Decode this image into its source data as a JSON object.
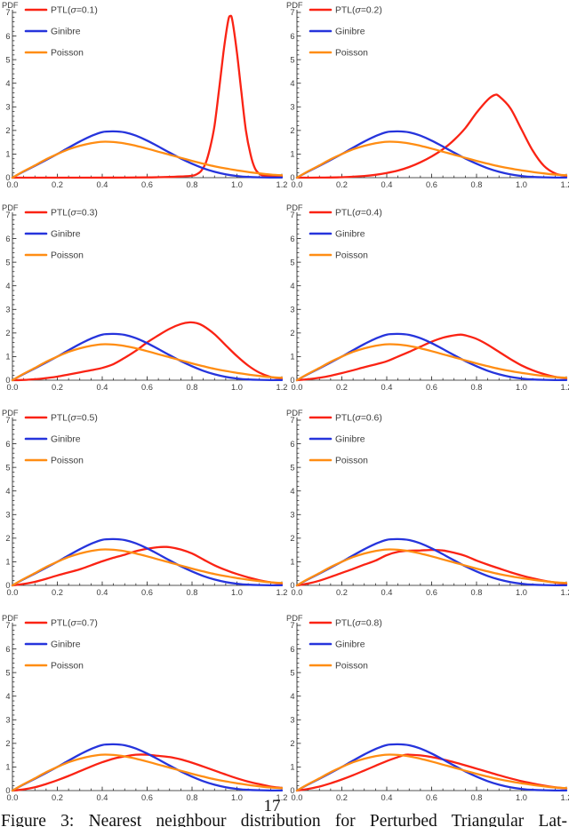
{
  "page": {
    "number": "17",
    "caption": "Figure 3:  Nearest neighbour distribution for Perturbed Triangular Lat-"
  },
  "colors": {
    "ptl": "#fa2314",
    "ginibre": "#2634dc",
    "poisson": "#ff8d13",
    "axis": "#1a1a1a",
    "tick_label": "#3d3d3d"
  },
  "chart_data": {
    "type": "line",
    "layout": "4 rows x 2 columns, 8 subplots",
    "ylabel": "PDF",
    "xlim": [
      0,
      1.2
    ],
    "ylim": [
      0,
      7
    ],
    "xtick_labels": [
      "0.0",
      "0.2",
      "0.4",
      "0.6",
      "0.8",
      "1.0",
      "1.2"
    ],
    "ytick_labels": [
      "0",
      "1",
      "2",
      "3",
      "4",
      "5",
      "6",
      "7"
    ],
    "x_minor_step": 0.05,
    "y_minor_step": 0.2,
    "grid": "off",
    "legend_position": "top-left",
    "common_series": [
      {
        "name": "Ginibre",
        "color": "#2634dc",
        "points": [
          [
            0,
            0
          ],
          [
            0.05,
            0.26
          ],
          [
            0.1,
            0.5
          ],
          [
            0.15,
            0.75
          ],
          [
            0.2,
            1.0
          ],
          [
            0.25,
            1.27
          ],
          [
            0.3,
            1.53
          ],
          [
            0.35,
            1.76
          ],
          [
            0.4,
            1.93
          ],
          [
            0.45,
            1.96
          ],
          [
            0.5,
            1.92
          ],
          [
            0.55,
            1.78
          ],
          [
            0.6,
            1.57
          ],
          [
            0.65,
            1.32
          ],
          [
            0.7,
            1.06
          ],
          [
            0.75,
            0.81
          ],
          [
            0.8,
            0.59
          ],
          [
            0.85,
            0.4
          ],
          [
            0.9,
            0.25
          ],
          [
            0.95,
            0.14
          ],
          [
            1.0,
            0.07
          ],
          [
            1.05,
            0.03
          ],
          [
            1.1,
            0.015
          ],
          [
            1.15,
            0.005
          ],
          [
            1.2,
            0.002
          ]
        ]
      },
      {
        "name": "Poisson",
        "color": "#ff8d13",
        "points": [
          [
            0,
            0
          ],
          [
            0.05,
            0.27
          ],
          [
            0.1,
            0.52
          ],
          [
            0.15,
            0.78
          ],
          [
            0.2,
            1.0
          ],
          [
            0.25,
            1.2
          ],
          [
            0.3,
            1.35
          ],
          [
            0.35,
            1.46
          ],
          [
            0.4,
            1.52
          ],
          [
            0.45,
            1.51
          ],
          [
            0.5,
            1.45
          ],
          [
            0.55,
            1.35
          ],
          [
            0.6,
            1.23
          ],
          [
            0.65,
            1.1
          ],
          [
            0.7,
            0.97
          ],
          [
            0.75,
            0.84
          ],
          [
            0.8,
            0.71
          ],
          [
            0.85,
            0.59
          ],
          [
            0.9,
            0.48
          ],
          [
            0.95,
            0.39
          ],
          [
            1.0,
            0.31
          ],
          [
            1.05,
            0.24
          ],
          [
            1.1,
            0.18
          ],
          [
            1.15,
            0.13
          ],
          [
            1.2,
            0.1
          ]
        ]
      }
    ],
    "subplots": [
      {
        "sigma": "0.1",
        "ptl_label": "PTL(σ=0.1)",
        "ptl_peak_x": 0.97,
        "ptl_peak_y": 6.85,
        "ptl_points": [
          [
            0,
            0
          ],
          [
            0.3,
            0
          ],
          [
            0.5,
            0.005
          ],
          [
            0.6,
            0.01
          ],
          [
            0.65,
            0.02
          ],
          [
            0.7,
            0.03
          ],
          [
            0.75,
            0.05
          ],
          [
            0.8,
            0.08
          ],
          [
            0.82,
            0.14
          ],
          [
            0.84,
            0.28
          ],
          [
            0.86,
            0.6
          ],
          [
            0.88,
            1.25
          ],
          [
            0.9,
            2.2
          ],
          [
            0.92,
            3.7
          ],
          [
            0.94,
            5.3
          ],
          [
            0.96,
            6.6
          ],
          [
            0.97,
            6.85
          ],
          [
            0.98,
            6.65
          ],
          [
            1.0,
            5.3
          ],
          [
            1.02,
            3.6
          ],
          [
            1.04,
            2.0
          ],
          [
            1.06,
            1.0
          ],
          [
            1.08,
            0.4
          ],
          [
            1.1,
            0.16
          ],
          [
            1.12,
            0.09
          ],
          [
            1.15,
            0.06
          ],
          [
            1.2,
            0.05
          ]
        ]
      },
      {
        "sigma": "0.2",
        "ptl_label": "PTL(σ=0.2)",
        "ptl_peak_x": 0.88,
        "ptl_peak_y": 3.5,
        "ptl_points": [
          [
            0,
            0
          ],
          [
            0.1,
            0.005
          ],
          [
            0.2,
            0.02
          ],
          [
            0.3,
            0.07
          ],
          [
            0.35,
            0.12
          ],
          [
            0.4,
            0.2
          ],
          [
            0.45,
            0.3
          ],
          [
            0.5,
            0.45
          ],
          [
            0.55,
            0.65
          ],
          [
            0.6,
            0.9
          ],
          [
            0.65,
            1.2
          ],
          [
            0.7,
            1.6
          ],
          [
            0.75,
            2.1
          ],
          [
            0.8,
            2.75
          ],
          [
            0.85,
            3.3
          ],
          [
            0.88,
            3.5
          ],
          [
            0.9,
            3.45
          ],
          [
            0.95,
            2.95
          ],
          [
            1.0,
            2.05
          ],
          [
            1.05,
            1.15
          ],
          [
            1.1,
            0.5
          ],
          [
            1.15,
            0.18
          ],
          [
            1.2,
            0.07
          ]
        ]
      },
      {
        "sigma": "0.3",
        "ptl_label": "PTL(σ=0.3)",
        "ptl_peak_x": 0.79,
        "ptl_peak_y": 2.45,
        "ptl_points": [
          [
            0,
            0
          ],
          [
            0.05,
            0.01
          ],
          [
            0.1,
            0.04
          ],
          [
            0.15,
            0.09
          ],
          [
            0.2,
            0.15
          ],
          [
            0.25,
            0.24
          ],
          [
            0.3,
            0.33
          ],
          [
            0.35,
            0.42
          ],
          [
            0.4,
            0.52
          ],
          [
            0.45,
            0.68
          ],
          [
            0.5,
            0.95
          ],
          [
            0.55,
            1.25
          ],
          [
            0.6,
            1.6
          ],
          [
            0.65,
            1.9
          ],
          [
            0.7,
            2.18
          ],
          [
            0.75,
            2.38
          ],
          [
            0.79,
            2.45
          ],
          [
            0.82,
            2.42
          ],
          [
            0.85,
            2.3
          ],
          [
            0.9,
            1.95
          ],
          [
            0.95,
            1.48
          ],
          [
            1.0,
            1.02
          ],
          [
            1.05,
            0.62
          ],
          [
            1.1,
            0.32
          ],
          [
            1.15,
            0.14
          ],
          [
            1.2,
            0.07
          ]
        ]
      },
      {
        "sigma": "0.4",
        "ptl_label": "PTL(σ=0.4)",
        "ptl_peak_x": 0.73,
        "ptl_peak_y": 1.93,
        "ptl_points": [
          [
            0,
            0
          ],
          [
            0.05,
            0.04
          ],
          [
            0.1,
            0.1
          ],
          [
            0.15,
            0.19
          ],
          [
            0.2,
            0.3
          ],
          [
            0.25,
            0.42
          ],
          [
            0.3,
            0.55
          ],
          [
            0.35,
            0.67
          ],
          [
            0.4,
            0.8
          ],
          [
            0.45,
            1.0
          ],
          [
            0.5,
            1.2
          ],
          [
            0.55,
            1.42
          ],
          [
            0.6,
            1.63
          ],
          [
            0.65,
            1.8
          ],
          [
            0.7,
            1.9
          ],
          [
            0.73,
            1.93
          ],
          [
            0.75,
            1.9
          ],
          [
            0.8,
            1.75
          ],
          [
            0.85,
            1.5
          ],
          [
            0.9,
            1.2
          ],
          [
            0.95,
            0.9
          ],
          [
            1.0,
            0.63
          ],
          [
            1.05,
            0.42
          ],
          [
            1.1,
            0.26
          ],
          [
            1.15,
            0.14
          ],
          [
            1.2,
            0.08
          ]
        ]
      },
      {
        "sigma": "0.5",
        "ptl_label": "PTL(σ=0.5)",
        "ptl_peak_x": 0.68,
        "ptl_peak_y": 1.63,
        "ptl_points": [
          [
            0,
            0
          ],
          [
            0.05,
            0.06
          ],
          [
            0.1,
            0.15
          ],
          [
            0.15,
            0.28
          ],
          [
            0.2,
            0.42
          ],
          [
            0.25,
            0.55
          ],
          [
            0.3,
            0.68
          ],
          [
            0.35,
            0.85
          ],
          [
            0.4,
            1.02
          ],
          [
            0.45,
            1.17
          ],
          [
            0.5,
            1.3
          ],
          [
            0.55,
            1.45
          ],
          [
            0.6,
            1.55
          ],
          [
            0.65,
            1.62
          ],
          [
            0.68,
            1.63
          ],
          [
            0.7,
            1.62
          ],
          [
            0.75,
            1.52
          ],
          [
            0.8,
            1.35
          ],
          [
            0.85,
            1.1
          ],
          [
            0.9,
            0.85
          ],
          [
            0.95,
            0.65
          ],
          [
            1.0,
            0.48
          ],
          [
            1.05,
            0.34
          ],
          [
            1.1,
            0.22
          ],
          [
            1.15,
            0.13
          ],
          [
            1.2,
            0.08
          ]
        ]
      },
      {
        "sigma": "0.6",
        "ptl_label": "PTL(σ=0.6)",
        "ptl_peak_x": 0.6,
        "ptl_peak_y": 1.5,
        "ptl_points": [
          [
            0,
            0
          ],
          [
            0.05,
            0.08
          ],
          [
            0.1,
            0.2
          ],
          [
            0.15,
            0.36
          ],
          [
            0.2,
            0.53
          ],
          [
            0.25,
            0.7
          ],
          [
            0.3,
            0.88
          ],
          [
            0.35,
            1.05
          ],
          [
            0.4,
            1.28
          ],
          [
            0.45,
            1.42
          ],
          [
            0.5,
            1.47
          ],
          [
            0.55,
            1.48
          ],
          [
            0.6,
            1.5
          ],
          [
            0.65,
            1.48
          ],
          [
            0.7,
            1.38
          ],
          [
            0.75,
            1.25
          ],
          [
            0.8,
            1.05
          ],
          [
            0.85,
            0.88
          ],
          [
            0.9,
            0.72
          ],
          [
            0.95,
            0.56
          ],
          [
            1.0,
            0.42
          ],
          [
            1.05,
            0.3
          ],
          [
            1.1,
            0.2
          ],
          [
            1.15,
            0.12
          ],
          [
            1.2,
            0.07
          ]
        ]
      },
      {
        "sigma": "0.7",
        "ptl_label": "PTL(σ=0.7)",
        "ptl_peak_x": 0.57,
        "ptl_peak_y": 1.52,
        "ptl_points": [
          [
            0,
            0
          ],
          [
            0.05,
            0.05
          ],
          [
            0.1,
            0.14
          ],
          [
            0.15,
            0.28
          ],
          [
            0.2,
            0.44
          ],
          [
            0.25,
            0.62
          ],
          [
            0.3,
            0.82
          ],
          [
            0.35,
            1.02
          ],
          [
            0.4,
            1.2
          ],
          [
            0.45,
            1.35
          ],
          [
            0.5,
            1.45
          ],
          [
            0.55,
            1.52
          ],
          [
            0.6,
            1.52
          ],
          [
            0.65,
            1.47
          ],
          [
            0.7,
            1.42
          ],
          [
            0.75,
            1.32
          ],
          [
            0.8,
            1.18
          ],
          [
            0.85,
            1.02
          ],
          [
            0.9,
            0.85
          ],
          [
            0.95,
            0.68
          ],
          [
            1.0,
            0.52
          ],
          [
            1.05,
            0.38
          ],
          [
            1.1,
            0.27
          ],
          [
            1.15,
            0.17
          ],
          [
            1.2,
            0.11
          ]
        ]
      },
      {
        "sigma": "0.8",
        "ptl_label": "PTL(σ=0.8)",
        "ptl_peak_x": 0.5,
        "ptl_peak_y": 1.52,
        "ptl_points": [
          [
            0,
            0
          ],
          [
            0.05,
            0.07
          ],
          [
            0.1,
            0.17
          ],
          [
            0.15,
            0.31
          ],
          [
            0.2,
            0.47
          ],
          [
            0.25,
            0.65
          ],
          [
            0.3,
            0.85
          ],
          [
            0.35,
            1.05
          ],
          [
            0.4,
            1.25
          ],
          [
            0.45,
            1.42
          ],
          [
            0.48,
            1.51
          ],
          [
            0.5,
            1.52
          ],
          [
            0.55,
            1.49
          ],
          [
            0.6,
            1.42
          ],
          [
            0.65,
            1.32
          ],
          [
            0.7,
            1.2
          ],
          [
            0.75,
            1.07
          ],
          [
            0.8,
            0.93
          ],
          [
            0.85,
            0.79
          ],
          [
            0.9,
            0.65
          ],
          [
            0.95,
            0.52
          ],
          [
            1.0,
            0.4
          ],
          [
            1.05,
            0.3
          ],
          [
            1.1,
            0.21
          ],
          [
            1.15,
            0.14
          ],
          [
            1.2,
            0.09
          ]
        ]
      }
    ]
  }
}
